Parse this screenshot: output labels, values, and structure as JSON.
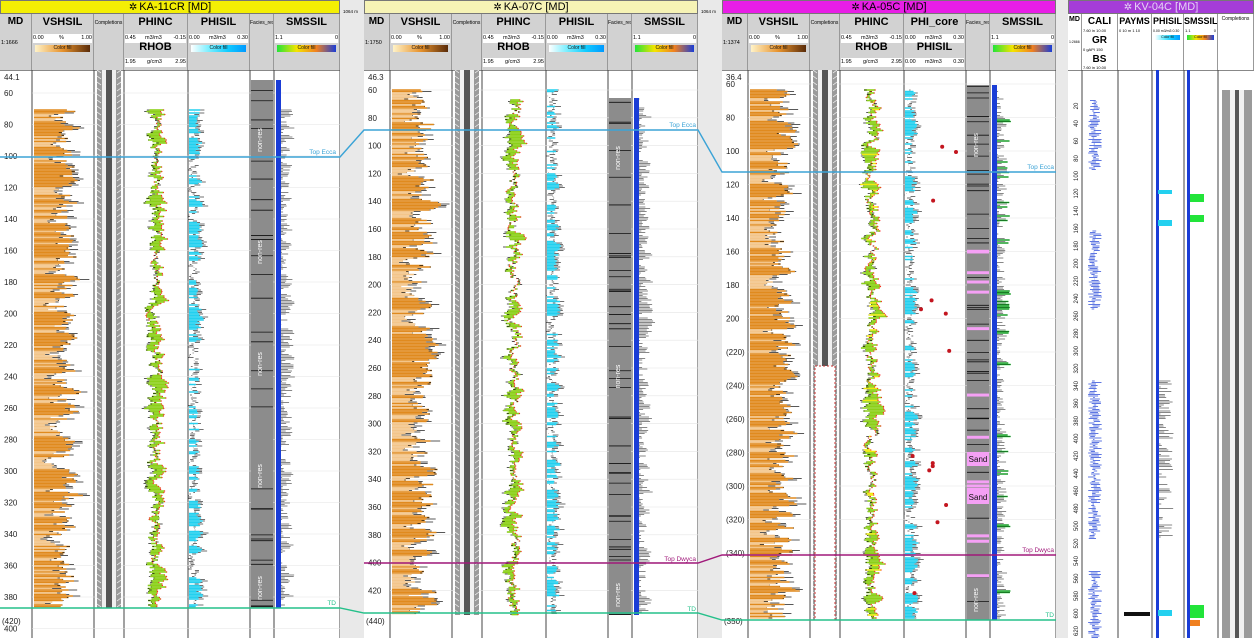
{
  "wells": [
    {
      "title": "KA-11CR [MD]",
      "title_bg": "#f4ef04",
      "ratio": "1:1666",
      "start_depth": "44.1",
      "end_depth": "(420)",
      "ticks": [
        "60",
        "80",
        "100",
        "120",
        "140",
        "160",
        "180",
        "200",
        "220",
        "240",
        "260",
        "280",
        "300",
        "320",
        "340",
        "360",
        "380",
        "400"
      ],
      "surfaces": [
        "Top Ecca",
        "TD"
      ],
      "zone_labels": [
        "non-res",
        "non-res",
        "non-res",
        "non-res",
        "non-res"
      ]
    },
    {
      "title": "KA-07C [MD]",
      "title_bg": "#f6f3b5",
      "ratio": "1:1750",
      "start_depth": "46.3",
      "end_depth": "(440)",
      "ticks": [
        "60",
        "80",
        "100",
        "120",
        "140",
        "160",
        "180",
        "200",
        "220",
        "240",
        "260",
        "280",
        "300",
        "320",
        "340",
        "360",
        "380",
        "400",
        "420"
      ],
      "surfaces": [
        "Top Ecca",
        "Top Dwyca",
        "TD"
      ],
      "zone_labels": [
        "non-res",
        "non-res",
        "non-res"
      ]
    },
    {
      "title": "KA-05C [MD]",
      "title_bg": "#e81ee6",
      "ratio": "1:1374",
      "start_depth": "36.4",
      "end_depth": "(350)",
      "ticks": [
        "60",
        "80",
        "100",
        "120",
        "140",
        "160",
        "180",
        "200",
        "(220)",
        "(240)",
        "(260)",
        "(280)",
        "(300)",
        "(320)",
        "(340)"
      ],
      "surfaces": [
        "Top Ecca",
        "Top Dwyca",
        "TD"
      ],
      "zone_labels": [
        "non-res",
        "non-res"
      ],
      "sand_labels": [
        "Sand",
        "Sand"
      ]
    },
    {
      "title": "KV-04C [MD]",
      "title_bg": "#a53cd8",
      "ratio": "1:2666",
      "ticks": [
        "20",
        "40",
        "60",
        "80",
        "100",
        "120",
        "140",
        "160",
        "180",
        "200",
        "220",
        "240",
        "260",
        "280",
        "300",
        "320",
        "340",
        "360",
        "380",
        "400",
        "420",
        "440",
        "460",
        "480",
        "500",
        "520",
        "540",
        "560",
        "580",
        "600",
        "620"
      ]
    }
  ],
  "track_labels": {
    "md": "MD",
    "vshsil": "VSHSIL",
    "completions": "Completions",
    "phinc": "PHINC",
    "phisil": "PHISIL",
    "smssil": "SMSSIL",
    "rhob": "RHOB",
    "facies": "Facies_res",
    "phi_core": "PHI_core",
    "cali": "CALI",
    "gr": "GR",
    "bs": "BS",
    "payms": "PAYMS"
  },
  "scales": {
    "vshsil_left": "0.00",
    "vshsil_unit": "%",
    "vshsil_right": "1.00",
    "phinc_left": "0.45",
    "phinc_unit": "m3/m3",
    "phinc_right": "-0.15",
    "phisil_left": "0.00",
    "phisil_unit": "m3/m3",
    "phisil_right": "0.30",
    "smssil_left": "1.1",
    "smssil_right": "0",
    "rhob_left": "1.95",
    "rhob_unit": "g/cm3",
    "rhob_right": "2.95",
    "phicore_left": "0.00",
    "phicore_unit": "m3/m3",
    "phicore_right": "0.30",
    "cali_scale": "7.60 in 10.00",
    "gr_scale": "0 gAPI 150",
    "bs_scale": "7.60 in 10.00",
    "payms_scale": "0 10 m 1 10",
    "phisil_kv": "0.00 m3/m3 0.30",
    "color_fill": "Color fill"
  },
  "gap_labels": [
    "1064 m",
    "1064 m",
    "1304 m"
  ],
  "colors": {
    "vsh": "#e08a1e",
    "phinc": "#8cd01a",
    "phisil": "#23d0ef",
    "sms": "#1a3dd6",
    "facies": "#8c8c8c",
    "ecca": "#3ba3d6",
    "dwyca": "#a0197a",
    "td": "#25c08a",
    "sand": "#f5a0f5",
    "smsgreen": "#22e43a"
  }
}
